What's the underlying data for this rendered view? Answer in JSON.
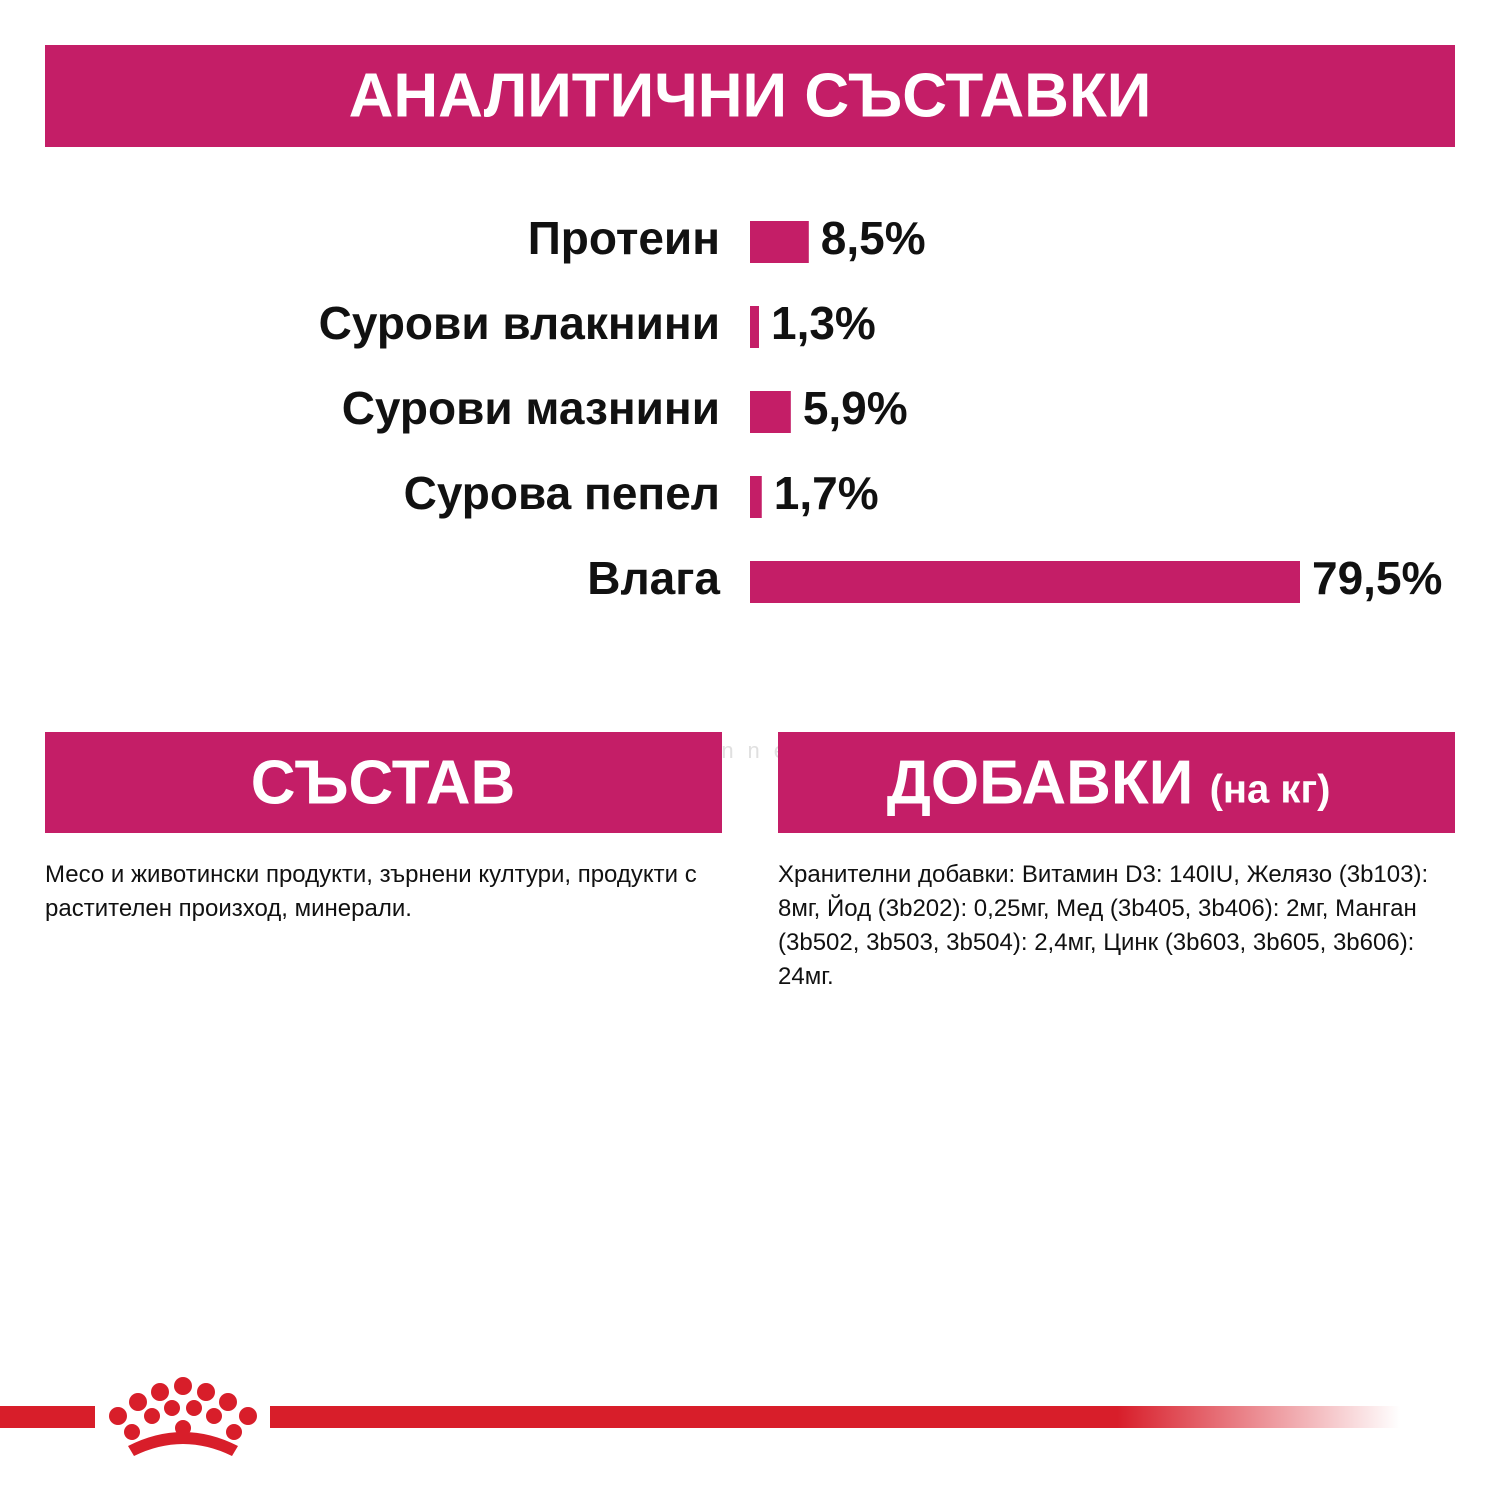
{
  "chart_data": {
    "type": "hbar",
    "title": "АНАЛИТИЧНИ СЪСТАВКИ",
    "categories": [
      "Протеин",
      "Сурови влакнини",
      "Сурови мазнини",
      "Сурова пепел",
      "Влага"
    ],
    "values": [
      8.5,
      1.3,
      5.9,
      1.7,
      79.5
    ],
    "value_labels": [
      "8,5%",
      "1,3%",
      "5,9%",
      "1,7%",
      "79,5%"
    ],
    "color": "#c41e67"
  },
  "composition": {
    "title": "СЪСТАВ",
    "text": "Месо и животински продукти, зърнени култури, продукти с растителен произход, минерали."
  },
  "additives": {
    "title": "ДОБАВКИ",
    "unit": "(на кг)",
    "text": "Хранителни добавки: Витамин D3: 140IU, Желязо (3b103): 8мг, Йод (3b202): 0,25мг, Мед (3b405, 3b406): 2мг, Манган (3b502, 3b503, 3b504): 2,4мг, Цинк (3b603, 3b605, 3b606): 24мг."
  },
  "watermark": "ariakennel.com"
}
